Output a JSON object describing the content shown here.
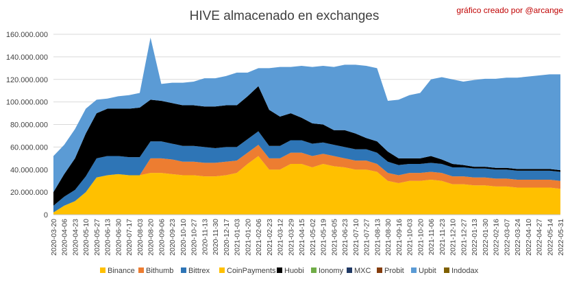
{
  "chart_data": {
    "type": "area",
    "stacked": true,
    "title": "HIVE almacenado en exchanges",
    "credit": "gráfico creado por @arcange",
    "xlabel": "",
    "ylabel": "",
    "ylim": [
      0,
      160000000
    ],
    "y_ticks": [
      0,
      20000000,
      40000000,
      60000000,
      80000000,
      100000000,
      120000000,
      140000000,
      160000000
    ],
    "y_tick_labels": [
      "0",
      "20.000.000",
      "40.000.000",
      "60.000.000",
      "80.000.000",
      "100.000.000",
      "120.000.000",
      "140.000.000",
      "160.000.000"
    ],
    "x_tick_labels": [
      "2020-03-20",
      "2020-04-06",
      "2020-04-23",
      "2020-05-10",
      "2020-05-27",
      "2020-06-13",
      "2020-06-30",
      "2020-07-17",
      "2020-08-03",
      "2020-08-20",
      "2020-09-06",
      "2020-09-23",
      "2020-10-10",
      "2020-10-27",
      "2020-11-13",
      "2020-11-30",
      "2020-12-17",
      "2021-01-03",
      "2021-01-20",
      "2021-02-06",
      "2021-02-23",
      "2021-03-12",
      "2021-03-29",
      "2021-04-15",
      "2021-05-02",
      "2021-05-19",
      "2021-06-05",
      "2021-06-23",
      "2021-07-10",
      "2021-07-27",
      "2021-08-13",
      "2021-08-30",
      "2021-09-16",
      "2021-10-03",
      "2021-10-20",
      "2021-11-06",
      "2021-11-23",
      "2021-12-10",
      "2021-12-27",
      "2022-01-13",
      "2022-01-30",
      "2022-02-16",
      "2022-03-07",
      "2022-03-24",
      "2022-04-10",
      "2022-04-27",
      "2022-05-14",
      "2022-05-31"
    ],
    "grid": true,
    "legend_position": "bottom",
    "series": [
      {
        "name": "Binance",
        "color": "#FFC000",
        "values": [
          2000000,
          8000000,
          12000000,
          20000000,
          33000000,
          35000000,
          36000000,
          35000000,
          35000000,
          37000000,
          37000000,
          36000000,
          35000000,
          35000000,
          34000000,
          34000000,
          35000000,
          37000000,
          45000000,
          52000000,
          40000000,
          40000000,
          45000000,
          45000000,
          42000000,
          45000000,
          43000000,
          42000000,
          40000000,
          40000000,
          38000000,
          30000000,
          28000000,
          30000000,
          30000000,
          31000000,
          30000000,
          27000000,
          27000000,
          26000000,
          26000000,
          25000000,
          25000000,
          24000000,
          24000000,
          24000000,
          24000000,
          23000000
        ]
      },
      {
        "name": "Bithumb",
        "color": "#ED7D31",
        "values": [
          0,
          0,
          0,
          0,
          0,
          0,
          0,
          0,
          0,
          13000000,
          13000000,
          13000000,
          12000000,
          12000000,
          12000000,
          12000000,
          12000000,
          11000000,
          10000000,
          10000000,
          10000000,
          10000000,
          10000000,
          10000000,
          10000000,
          9000000,
          9000000,
          8000000,
          8000000,
          8000000,
          7000000,
          7000000,
          7000000,
          7000000,
          7000000,
          7000000,
          7000000,
          7000000,
          7000000,
          7000000,
          7000000,
          7000000,
          7000000,
          7000000,
          7000000,
          7000000,
          7000000,
          7000000
        ]
      },
      {
        "name": "Bittrex",
        "color": "#2E75B6",
        "values": [
          6000000,
          8000000,
          10000000,
          14000000,
          17000000,
          17000000,
          16000000,
          16000000,
          16000000,
          15000000,
          15000000,
          14000000,
          14000000,
          14000000,
          14000000,
          13000000,
          13000000,
          12000000,
          12000000,
          12000000,
          11000000,
          11000000,
          11000000,
          11000000,
          11000000,
          10000000,
          10000000,
          10000000,
          10000000,
          10000000,
          10000000,
          10000000,
          9000000,
          8000000,
          8000000,
          8000000,
          8000000,
          8000000,
          8000000,
          8000000,
          8000000,
          8000000,
          8000000,
          8000000,
          8000000,
          8000000,
          8000000,
          8000000
        ]
      },
      {
        "name": "CoinPayments",
        "color": "#FFC000",
        "values": [
          0,
          0,
          0,
          0,
          0,
          0,
          0,
          0,
          0,
          0,
          0,
          0,
          0,
          0,
          0,
          0,
          0,
          0,
          0,
          0,
          0,
          0,
          0,
          0,
          0,
          0,
          0,
          0,
          0,
          0,
          0,
          0,
          0,
          0,
          0,
          0,
          0,
          0,
          0,
          0,
          0,
          0,
          0,
          0,
          0,
          0,
          0,
          0
        ]
      },
      {
        "name": "Huobi",
        "color": "#000000",
        "values": [
          12000000,
          20000000,
          28000000,
          38000000,
          40000000,
          42000000,
          42000000,
          43000000,
          44000000,
          37000000,
          36000000,
          36000000,
          36000000,
          36000000,
          36000000,
          37000000,
          37000000,
          37000000,
          38000000,
          40000000,
          32000000,
          26000000,
          24000000,
          20000000,
          18000000,
          16000000,
          13000000,
          15000000,
          14000000,
          10000000,
          10000000,
          9000000,
          6000000,
          5000000,
          5000000,
          6000000,
          4000000,
          3000000,
          2000000,
          1500000,
          1500000,
          1500000,
          1500000,
          1500000,
          1500000,
          1500000,
          1500000,
          1500000
        ]
      },
      {
        "name": "Ionomy",
        "color": "#70AD47",
        "values": [
          0,
          0,
          0,
          0,
          0,
          0,
          0,
          0,
          0,
          0,
          0,
          0,
          0,
          0,
          0,
          0,
          0,
          0,
          0,
          0,
          0,
          0,
          0,
          0,
          0,
          0,
          0,
          0,
          0,
          0,
          0,
          0,
          0,
          0,
          0,
          0,
          0,
          0,
          0,
          0,
          0,
          0,
          0,
          0,
          0,
          0,
          0,
          0
        ]
      },
      {
        "name": "MXC",
        "color": "#1F3864",
        "values": [
          0,
          0,
          0,
          0,
          0,
          0,
          0,
          0,
          0,
          0,
          0,
          0,
          0,
          0,
          0,
          0,
          0,
          0,
          0,
          0,
          0,
          0,
          0,
          0,
          0,
          0,
          0,
          0,
          0,
          0,
          0,
          0,
          0,
          0,
          0,
          0,
          0,
          0,
          0,
          0,
          0,
          0,
          0,
          0,
          0,
          0,
          0,
          0
        ]
      },
      {
        "name": "Probit",
        "color": "#843C0C",
        "values": [
          0,
          0,
          0,
          0,
          0,
          0,
          0,
          0,
          0,
          0,
          0,
          0,
          0,
          0,
          0,
          0,
          0,
          0,
          0,
          0,
          0,
          0,
          0,
          0,
          0,
          0,
          0,
          0,
          0,
          0,
          0,
          0,
          0,
          0,
          0,
          0,
          0,
          0,
          0,
          0,
          0,
          0,
          0,
          0,
          0,
          0,
          0,
          0
        ]
      },
      {
        "name": "Upbit",
        "color": "#5B9BD5",
        "values": [
          32000000,
          26000000,
          26000000,
          22000000,
          12000000,
          9000000,
          11000000,
          12000000,
          13000000,
          55000000,
          15000000,
          18000000,
          20000000,
          21000000,
          25000000,
          25000000,
          26000000,
          29000000,
          21000000,
          16000000,
          37000000,
          44000000,
          41000000,
          46000000,
          50000000,
          52000000,
          56000000,
          58000000,
          61000000,
          64000000,
          65000000,
          45000000,
          52000000,
          56000000,
          58000000,
          68000000,
          73000000,
          75000000,
          74000000,
          77000000,
          78000000,
          79000000,
          80000000,
          81000000,
          82000000,
          83000000,
          84000000,
          85000000
        ]
      },
      {
        "name": "Indodax",
        "color": "#7F6000",
        "values": [
          0,
          0,
          0,
          0,
          0,
          0,
          0,
          0,
          0,
          0,
          0,
          0,
          0,
          0,
          0,
          0,
          0,
          0,
          0,
          0,
          0,
          0,
          0,
          0,
          0,
          0,
          0,
          0,
          0,
          0,
          0,
          0,
          0,
          0,
          0,
          0,
          0,
          0,
          0,
          0,
          0,
          0,
          0,
          0,
          0,
          0,
          0,
          0
        ]
      }
    ]
  }
}
